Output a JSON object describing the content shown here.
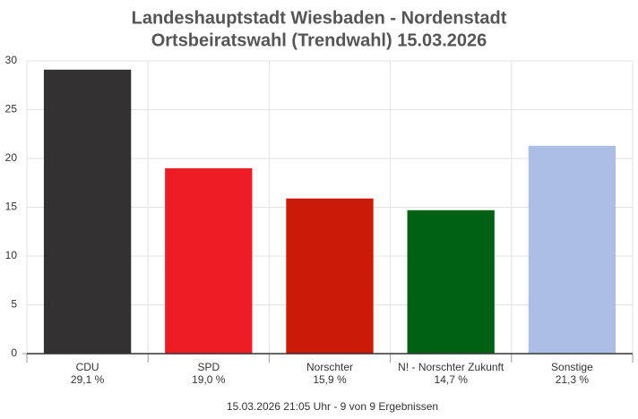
{
  "chart_data": {
    "type": "bar",
    "title": "Landeshauptstadt Wiesbaden - Nordenstadt",
    "subtitle": "Ortsbeiratswahl (Trendwahl) 15.03.2026",
    "footer": "15.03.2026 21:05 Uhr - 9 von 9 Ergebnissen",
    "categories": [
      "CDU",
      "SPD",
      "Norschter",
      "N! - Norschter Zukunft",
      "Sonstige"
    ],
    "values": [
      29.1,
      19.0,
      15.9,
      14.7,
      21.3
    ],
    "value_labels": [
      "29,1 %",
      "19,0 %",
      "15,9 %",
      "14,7 %",
      "21,3 %"
    ],
    "colors": [
      "#333132",
      "#ee1c25",
      "#cc1a08",
      "#006114",
      "#adbee5"
    ],
    "ylim": [
      0,
      30
    ],
    "yticks": [
      0,
      5,
      10,
      15,
      20,
      25,
      30
    ],
    "grid": true
  }
}
